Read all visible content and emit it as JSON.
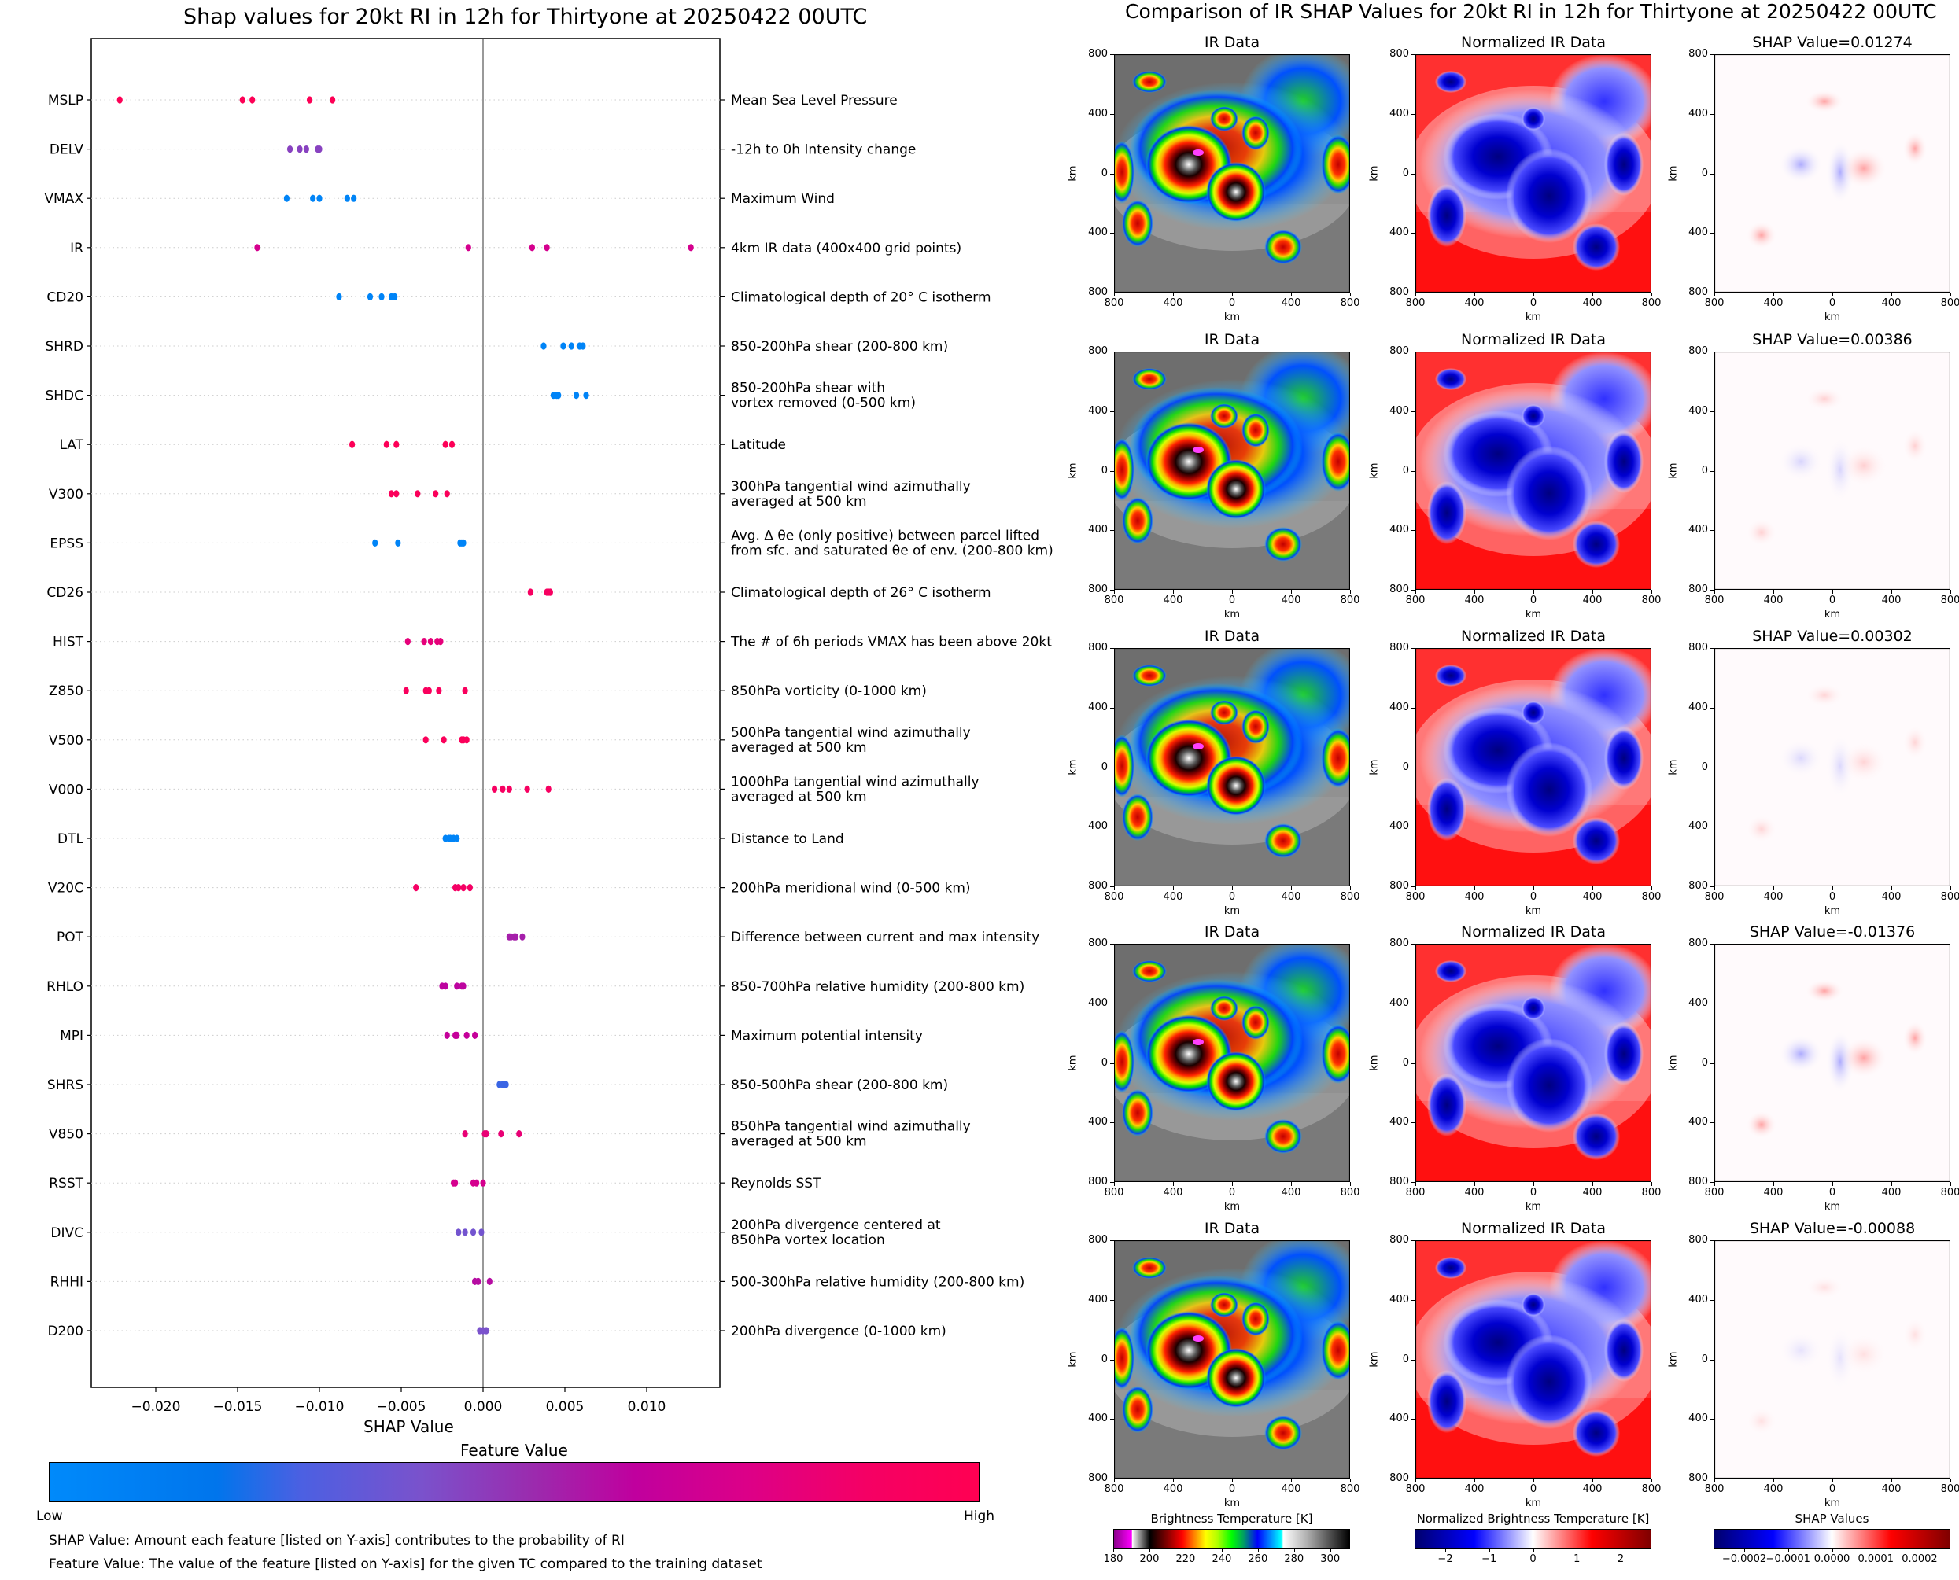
{
  "left_title": "Shap values for 20kt RI in 12h for Thirtyone at 20250422 00UTC",
  "right_title": "Comparison of IR SHAP Values for 20kt RI in 12h for Thirtyone at 20250422 00UTC",
  "chart_data": [
    {
      "type": "scatter",
      "title": "Shap values for 20kt RI in 12h for Thirtyone at 20250422 00UTC",
      "xlabel": "SHAP Value",
      "ylabel": "",
      "xlim": [
        -0.0239,
        0.0145
      ],
      "xticks": [
        "−0.020",
        "−0.015",
        "−0.010",
        "−0.005",
        "0.000",
        "0.005",
        "0.010"
      ],
      "xtick_values": [
        -0.02,
        -0.015,
        -0.01,
        -0.005,
        0.0,
        0.005,
        0.01
      ],
      "grid": "horizontal dotted per feature",
      "zero_line": true,
      "colorbar": {
        "title": "Feature Value",
        "low_label": "Low",
        "high_label": "High",
        "colors": [
          "#008afb",
          "#0070ea",
          "#4b5fe0",
          "#7a52cc",
          "#9b2bb0",
          "#c4009e",
          "#e00080",
          "#ff0052"
        ]
      },
      "features": [
        {
          "name": "MSLP",
          "description": "Mean Sea Level Pressure",
          "shap": [
            -0.0222,
            -0.0147,
            -0.0141,
            -0.0106,
            -0.0092
          ],
          "feature_level": [
            0.98,
            0.98,
            0.98,
            0.98,
            0.98
          ]
        },
        {
          "name": "DELV",
          "description": "-12h to 0h Intensity change",
          "shap": [
            -0.0118,
            -0.0112,
            -0.0108,
            -0.0101,
            -0.01
          ],
          "feature_level": [
            0.45,
            0.45,
            0.45,
            0.45,
            0.45
          ]
        },
        {
          "name": "VMAX",
          "description": "Maximum Wind",
          "shap": [
            -0.012,
            -0.0104,
            -0.01,
            -0.0083,
            -0.0079
          ],
          "feature_level": [
            0.05,
            0.05,
            0.05,
            0.05,
            0.05
          ]
        },
        {
          "name": "IR",
          "description": "4km IR data (400x400 grid points)",
          "shap": [
            -0.0138,
            -0.0009,
            0.003,
            0.0039,
            0.0127
          ],
          "feature_level": [
            0.72,
            0.72,
            0.72,
            0.72,
            0.72
          ]
        },
        {
          "name": "CD20",
          "description": "Climatological depth of 20° C isotherm",
          "shap": [
            -0.0088,
            -0.0069,
            -0.0062,
            -0.0056,
            -0.0054
          ],
          "feature_level": [
            0.05,
            0.05,
            0.05,
            0.05,
            0.05
          ]
        },
        {
          "name": "SHRD",
          "description": "850-200hPa shear (200-800 km)",
          "shap": [
            0.0037,
            0.0049,
            0.0054,
            0.0059,
            0.0061
          ],
          "feature_level": [
            0.05,
            0.05,
            0.05,
            0.05,
            0.05
          ]
        },
        {
          "name": "SHDC",
          "description": "850-200hPa shear with\nvortex removed (0-500 km)",
          "shap": [
            0.0043,
            0.0045,
            0.0046,
            0.0057,
            0.0063
          ],
          "feature_level": [
            0.05,
            0.05,
            0.05,
            0.05,
            0.05
          ]
        },
        {
          "name": "LAT",
          "description": "Latitude",
          "shap": [
            -0.008,
            -0.0059,
            -0.0053,
            -0.0023,
            -0.0019
          ],
          "feature_level": [
            0.97,
            0.97,
            0.97,
            0.97,
            0.97
          ]
        },
        {
          "name": "V300",
          "description": "300hPa tangential wind azimuthally\naveraged at 500 km",
          "shap": [
            -0.0056,
            -0.0053,
            -0.004,
            -0.0029,
            -0.0022
          ],
          "feature_level": [
            0.95,
            0.95,
            0.95,
            0.95,
            0.95
          ]
        },
        {
          "name": "EPSS",
          "description": "Avg. Δ θe (only positive) between parcel lifted\nfrom sfc. and saturated θe of env. (200-800 km)",
          "shap": [
            -0.0066,
            -0.0052,
            -0.0014,
            -0.0013,
            -0.0012
          ],
          "feature_level": [
            0.05,
            0.05,
            0.05,
            0.05,
            0.05
          ]
        },
        {
          "name": "CD26",
          "description": "Climatological depth of 26° C isotherm",
          "shap": [
            0.0029,
            0.0039,
            0.004,
            0.0041,
            0.0041
          ],
          "feature_level": [
            0.9,
            0.9,
            0.9,
            0.9,
            0.9
          ]
        },
        {
          "name": "HIST",
          "description": "The # of 6h periods VMAX has been above 20kt",
          "shap": [
            -0.0046,
            -0.0036,
            -0.0032,
            -0.0028,
            -0.0026
          ],
          "feature_level": [
            0.8,
            0.8,
            0.8,
            0.8,
            0.8
          ]
        },
        {
          "name": "Z850",
          "description": "850hPa vorticity (0-1000 km)",
          "shap": [
            -0.0047,
            -0.0035,
            -0.0033,
            -0.0027,
            -0.0011
          ],
          "feature_level": [
            0.93,
            0.93,
            0.93,
            0.93,
            0.93
          ]
        },
        {
          "name": "V500",
          "description": "500hPa tangential wind azimuthally\naveraged at 500 km",
          "shap": [
            -0.0035,
            -0.0024,
            -0.0013,
            -0.0012,
            -0.001
          ],
          "feature_level": [
            0.95,
            0.95,
            0.95,
            0.95,
            0.95
          ]
        },
        {
          "name": "V000",
          "description": "1000hPa tangential wind azimuthally\naveraged at 500 km",
          "shap": [
            0.0007,
            0.0012,
            0.0016,
            0.0027,
            0.004
          ],
          "feature_level": [
            0.9,
            0.9,
            0.9,
            0.9,
            0.9
          ]
        },
        {
          "name": "DTL",
          "description": "Distance to Land",
          "shap": [
            -0.0023,
            -0.0021,
            -0.002,
            -0.0018,
            -0.0016
          ],
          "feature_level": [
            0.05,
            0.05,
            0.05,
            0.05,
            0.05
          ]
        },
        {
          "name": "V20C",
          "description": "200hPa meridional wind (0-500 km)",
          "shap": [
            -0.0041,
            -0.0017,
            -0.0015,
            -0.0012,
            -0.0008
          ],
          "feature_level": [
            0.88,
            0.88,
            0.88,
            0.88,
            0.88
          ]
        },
        {
          "name": "POT",
          "description": "Difference between current and max intensity",
          "shap": [
            0.0016,
            0.0017,
            0.0019,
            0.002,
            0.0024
          ],
          "feature_level": [
            0.55,
            0.55,
            0.55,
            0.55,
            0.55
          ]
        },
        {
          "name": "RHLO",
          "description": "850-700hPa relative humidity (200-800 km)",
          "shap": [
            -0.0025,
            -0.0023,
            -0.0016,
            -0.0013,
            -0.0012
          ],
          "feature_level": [
            0.62,
            0.62,
            0.62,
            0.62,
            0.62
          ]
        },
        {
          "name": "MPI",
          "description": "Maximum potential intensity",
          "shap": [
            -0.0022,
            -0.0017,
            -0.0016,
            -0.001,
            -0.0005
          ],
          "feature_level": [
            0.65,
            0.65,
            0.65,
            0.65,
            0.65
          ]
        },
        {
          "name": "SHRS",
          "description": "850-500hPa shear (200-800 km)",
          "shap": [
            0.001,
            0.0012,
            0.0013,
            0.0014
          ],
          "feature_level": [
            0.25,
            0.25,
            0.25,
            0.25
          ]
        },
        {
          "name": "V850",
          "description": "850hPa tangential wind azimuthally\naveraged at 500 km",
          "shap": [
            -0.0011,
            0.0001,
            0.0002,
            0.0011,
            0.0022
          ],
          "feature_level": [
            0.82,
            0.82,
            0.82,
            0.82,
            0.82
          ]
        },
        {
          "name": "RSST",
          "description": "Reynolds SST",
          "shap": [
            -0.0018,
            -0.0017,
            -0.0006,
            -0.0004,
            0.0
          ],
          "feature_level": [
            0.72,
            0.72,
            0.72,
            0.72,
            0.72
          ]
        },
        {
          "name": "DIVC",
          "description": "200hPa divergence centered at\n850hPa vortex location",
          "shap": [
            -0.0015,
            -0.0011,
            -0.0006,
            -0.0001
          ],
          "feature_level": [
            0.38,
            0.38,
            0.38,
            0.38
          ]
        },
        {
          "name": "RHHI",
          "description": "500-300hPa relative humidity (200-800 km)",
          "shap": [
            -0.0005,
            -0.0003,
            0.0004
          ],
          "feature_level": [
            0.6,
            0.6,
            0.6
          ]
        },
        {
          "name": "D200",
          "description": "200hPa divergence (0-1000 km)",
          "shap": [
            -0.0002,
            0.0,
            0.0002
          ],
          "feature_level": [
            0.4,
            0.4,
            0.4
          ]
        }
      ]
    },
    {
      "type": "heatmap",
      "title": "Comparison of IR SHAP Values for 20kt RI in 12h for Thirtyone at 20250422 00UTC",
      "columns": [
        "IR Data",
        "Normalized IR Data",
        "SHAP Value"
      ],
      "axis_ticks": [
        "800",
        "400",
        "0",
        "400",
        "800"
      ],
      "xlabel": "km",
      "ylabel": "km",
      "rows": [
        {
          "shap_title": "SHAP Value=0.01274",
          "shap_value": 0.01274
        },
        {
          "shap_title": "SHAP Value=0.00386",
          "shap_value": 0.00386
        },
        {
          "shap_title": "SHAP Value=0.00302",
          "shap_value": 0.00302
        },
        {
          "shap_title": "SHAP Value=-0.01376",
          "shap_value": -0.01376
        },
        {
          "shap_title": "SHAP Value=-0.00088",
          "shap_value": -0.00088
        }
      ],
      "colorbars": [
        {
          "title": "Brightness Temperature [K]",
          "ticks": [
            "180",
            "200",
            "220",
            "240",
            "260",
            "280",
            "300"
          ],
          "range": [
            180,
            311
          ]
        },
        {
          "title": "Normalized Brightness Temperature [K]",
          "ticks": [
            "−2",
            "−1",
            "0",
            "1",
            "2"
          ],
          "range": [
            -2.7,
            2.7
          ]
        },
        {
          "title": "SHAP Values",
          "ticks": [
            "−0.0002",
            "−0.0001",
            "0.0000",
            "0.0001",
            "0.0002"
          ],
          "range": [
            -0.00027,
            0.00027
          ]
        }
      ]
    }
  ],
  "colorbar": {
    "title": "Feature Value",
    "low": "Low",
    "high": "High"
  },
  "captions": {
    "shap": "SHAP Value: Amount each feature [listed on Y-axis] contributes to the probability of RI",
    "feature": "Feature Value: The value of the feature [listed on Y-axis] for the given TC compared to the training dataset"
  },
  "xlabel": "SHAP Value"
}
